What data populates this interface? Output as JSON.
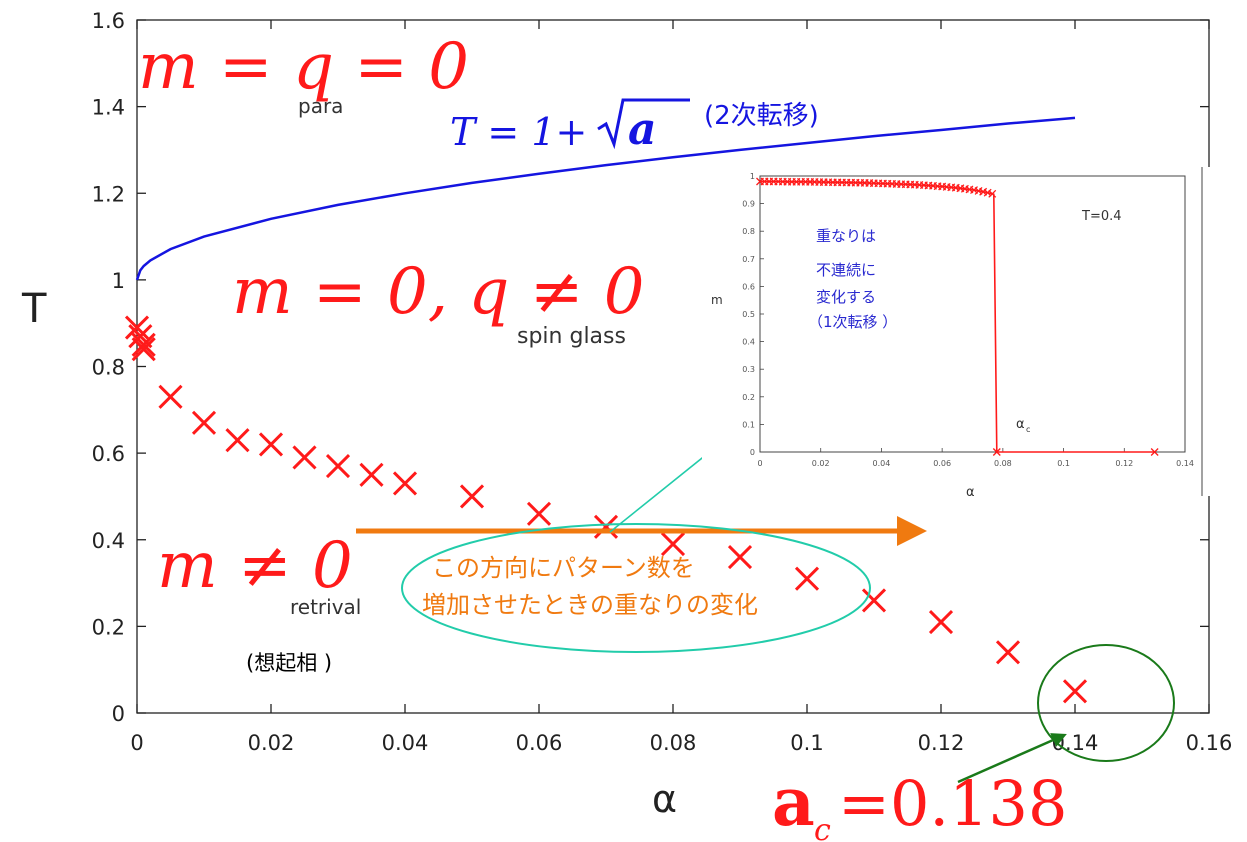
{
  "chart_data": {
    "type": "scatter",
    "xlabel": "α",
    "ylabel": "T",
    "xlim": [
      0,
      0.16
    ],
    "ylim": [
      0,
      1.6
    ],
    "x_ticks": [
      "0",
      "0.02",
      "0.04",
      "0.06",
      "0.08",
      "0.1",
      "0.12",
      "0.14",
      "0.16"
    ],
    "y_ticks": [
      "0",
      "0.2",
      "0.4",
      "0.6",
      "0.8",
      "1",
      "1.2",
      "1.4",
      "1.6"
    ],
    "series": [
      {
        "kind": "line",
        "color": "#1515e0",
        "x": [
          0,
          0.0005,
          0.001,
          0.002,
          0.005,
          0.01,
          0.02,
          0.03,
          0.04,
          0.05,
          0.06,
          0.07,
          0.08,
          0.09,
          0.1,
          0.11,
          0.12,
          0.13,
          0.14
        ],
        "y": [
          1.0,
          1.022,
          1.032,
          1.045,
          1.071,
          1.1,
          1.141,
          1.173,
          1.2,
          1.224,
          1.245,
          1.265,
          1.283,
          1.3,
          1.316,
          1.332,
          1.346,
          1.361,
          1.374
        ]
      },
      {
        "kind": "scatter",
        "marker": "x",
        "color": "#ff1a1a",
        "x": [
          0,
          0.0005,
          0.001,
          0.001,
          0.005,
          0.01,
          0.015,
          0.02,
          0.025,
          0.03,
          0.035,
          0.04,
          0.05,
          0.06,
          0.07,
          0.08,
          0.09,
          0.1,
          0.11,
          0.12,
          0.13,
          0.14
        ],
        "y": [
          0.89,
          0.87,
          0.85,
          0.84,
          0.73,
          0.67,
          0.63,
          0.62,
          0.59,
          0.57,
          0.55,
          0.53,
          0.5,
          0.46,
          0.43,
          0.39,
          0.36,
          0.31,
          0.26,
          0.21,
          0.14,
          0.05
        ]
      }
    ],
    "annotations": {
      "para_eq": "m = q = 0",
      "para": "para",
      "sg_eq": "m = 0, q ≠ 0",
      "sg": "spin glass",
      "ret_eq": "m ≠ 0",
      "ret": "retrival",
      "ret_jp": "(想起相 )",
      "curve_eq_lhs": "T = 1+",
      "curve_eq_rhs": "a",
      "curve_note": "(2次転移)",
      "ac_a": "a",
      "ac_sub": "c",
      "ac_val": "=0.138",
      "arrow_text_1": "この方向にパターン数を",
      "arrow_text_2": "増加させたときの重なりの変化"
    },
    "inset": {
      "type": "line",
      "xlabel": "α",
      "ylabel": "m",
      "xlim": [
        0,
        0.14
      ],
      "ylim": [
        0,
        1
      ],
      "x_ticks": [
        "0",
        "0.02",
        "0.04",
        "0.06",
        "0.08",
        "0.1",
        "0.12",
        "0.14"
      ],
      "y_ticks": [
        "0",
        "0.1",
        "0.2",
        "0.3",
        "0.4",
        "0.5",
        "0.6",
        "0.7",
        "0.8",
        "0.9",
        "1"
      ],
      "legend": "T=0.4",
      "alpha_c": "α",
      "alpha_c_sub": "c",
      "note": [
        "重なりは",
        "不連続に",
        "変化する",
        "（1次転移 ）"
      ],
      "color": "#ff1a1a",
      "x": [
        0,
        0.005,
        0.01,
        0.015,
        0.02,
        0.025,
        0.03,
        0.035,
        0.04,
        0.045,
        0.05,
        0.055,
        0.06,
        0.065,
        0.07,
        0.072,
        0.074,
        0.076,
        0.077,
        0.078,
        0.13
      ],
      "y": [
        0.98,
        0.98,
        0.979,
        0.979,
        0.978,
        0.977,
        0.976,
        0.975,
        0.973,
        0.971,
        0.969,
        0.966,
        0.962,
        0.957,
        0.95,
        0.946,
        0.942,
        0.937,
        0.934,
        0.0,
        0.0
      ]
    }
  },
  "colors": {
    "red": "#ff1a1a",
    "blue": "#1515e0",
    "orange": "#f07a10",
    "green": "#1a7a1a",
    "teal": "#22ccaa",
    "note_blue": "#2a2ad0"
  }
}
